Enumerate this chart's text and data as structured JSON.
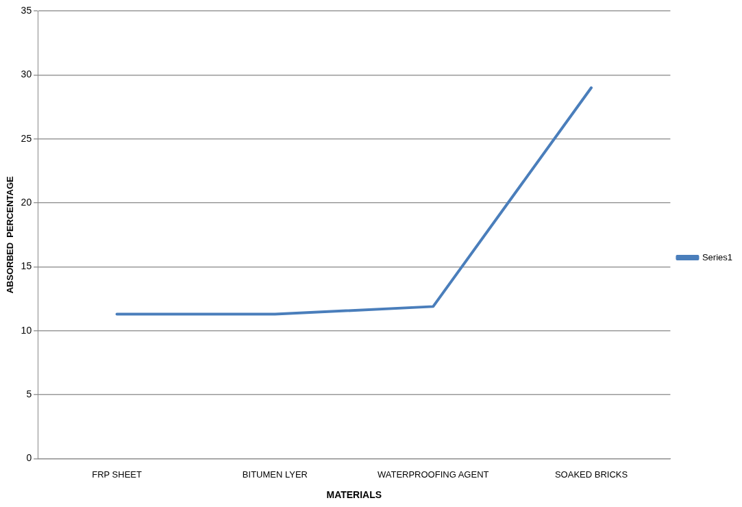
{
  "chart_data": {
    "type": "line",
    "xlabel": "MATERIALS",
    "ylabel": "ABSORBED  PERCENTAGE",
    "categories": [
      "FRP SHEET",
      "BITUMEN LYER",
      "WATERPROOFING AGENT",
      "SOAKED BRICKS"
    ],
    "series": [
      {
        "name": "Series1",
        "color": "#4a7ebb",
        "values": [
          11.3,
          11.3,
          11.9,
          29
        ]
      }
    ],
    "ylim": [
      0,
      35
    ],
    "yticks": [
      0,
      5,
      10,
      15,
      20,
      25,
      30,
      35
    ],
    "grid": "y",
    "legend": "right",
    "marker": "none",
    "line_style": "solid"
  }
}
